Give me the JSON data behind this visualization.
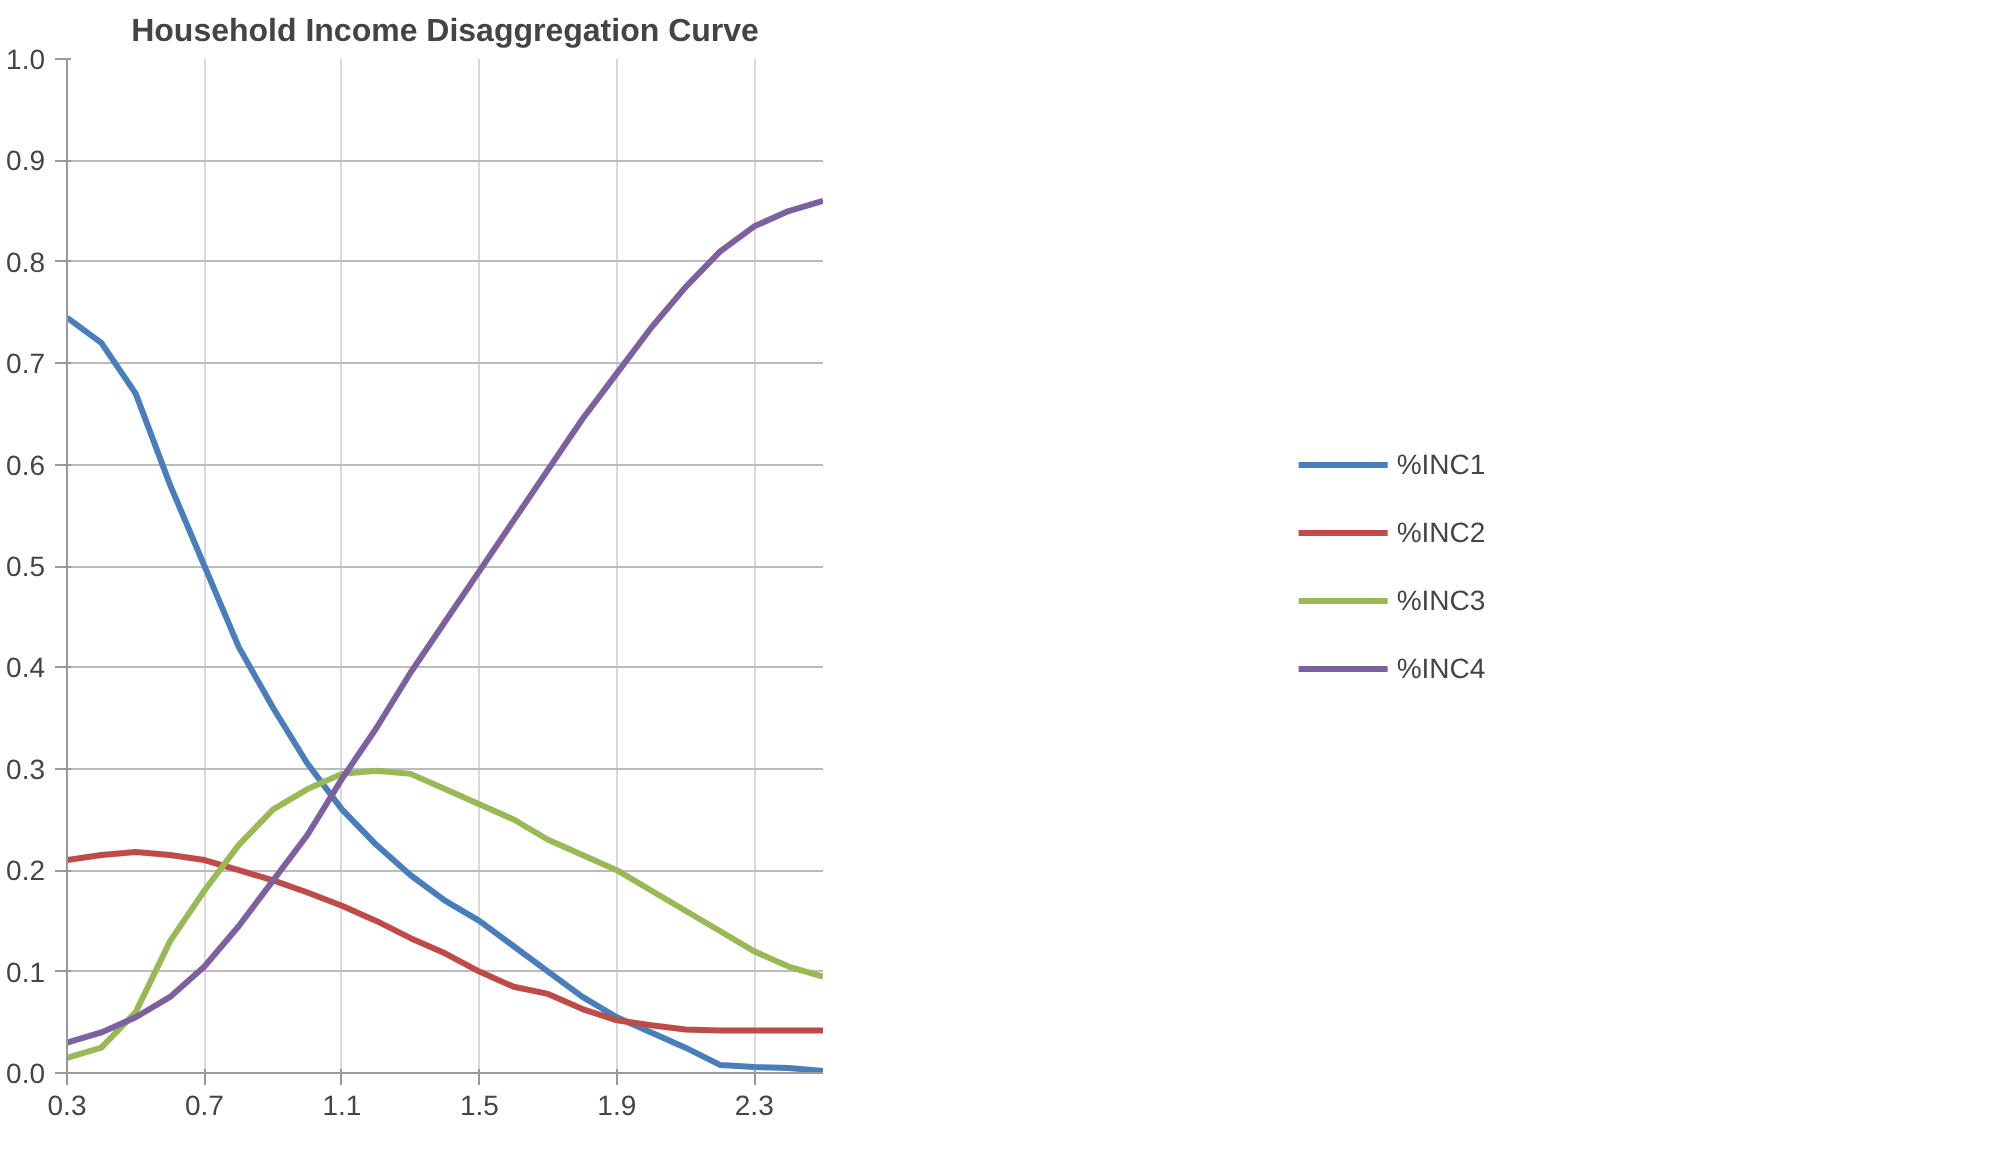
{
  "chart_data": {
    "type": "line",
    "title": "Household Income Disaggregation Curve",
    "x": [
      0.3,
      0.4,
      0.5,
      0.6,
      0.7,
      0.8,
      0.9,
      1.0,
      1.1,
      1.2,
      1.3,
      1.4,
      1.5,
      1.6,
      1.7,
      1.8,
      1.9,
      2.0,
      2.1,
      2.2,
      2.3,
      2.4,
      2.5
    ],
    "series": [
      {
        "name": "%INC1",
        "color": "#4a7ebb",
        "values": [
          0.745,
          0.72,
          0.67,
          0.58,
          0.5,
          0.42,
          0.36,
          0.305,
          0.26,
          0.225,
          0.195,
          0.17,
          0.15,
          0.125,
          0.1,
          0.075,
          0.055,
          0.04,
          0.025,
          0.008,
          0.006,
          0.005,
          0.002
        ]
      },
      {
        "name": "%INC2",
        "color": "#be4b48",
        "values": [
          0.21,
          0.215,
          0.218,
          0.215,
          0.21,
          0.2,
          0.19,
          0.178,
          0.165,
          0.15,
          0.133,
          0.118,
          0.1,
          0.085,
          0.078,
          0.063,
          0.052,
          0.047,
          0.043,
          0.042,
          0.042,
          0.042,
          0.042
        ]
      },
      {
        "name": "%INC3",
        "color": "#98b954",
        "values": [
          0.015,
          0.025,
          0.06,
          0.13,
          0.18,
          0.225,
          0.26,
          0.28,
          0.295,
          0.298,
          0.295,
          0.28,
          0.265,
          0.25,
          0.23,
          0.215,
          0.2,
          0.18,
          0.16,
          0.14,
          0.12,
          0.105,
          0.095
        ]
      },
      {
        "name": "%INC4",
        "color": "#7d60a0",
        "values": [
          0.03,
          0.04,
          0.055,
          0.075,
          0.105,
          0.145,
          0.19,
          0.235,
          0.29,
          0.34,
          0.395,
          0.445,
          0.495,
          0.545,
          0.595,
          0.645,
          0.69,
          0.735,
          0.775,
          0.81,
          0.835,
          0.85,
          0.86
        ]
      }
    ],
    "xlim": [
      0.3,
      2.5
    ],
    "xticks": [
      0.3,
      0.7,
      1.1,
      1.5,
      1.9,
      2.3
    ],
    "ylim": [
      0.0,
      1.0
    ],
    "yticks": [
      {
        "value": 0,
        "label": "0.0"
      },
      0.1,
      0.2,
      0.3,
      0.4,
      0.5,
      0.6,
      0.7,
      0.8,
      0.9,
      {
        "value": 1,
        "label": "1.0"
      }
    ],
    "grid": true,
    "legend": "right",
    "marker": "none",
    "line_style": "solid"
  }
}
